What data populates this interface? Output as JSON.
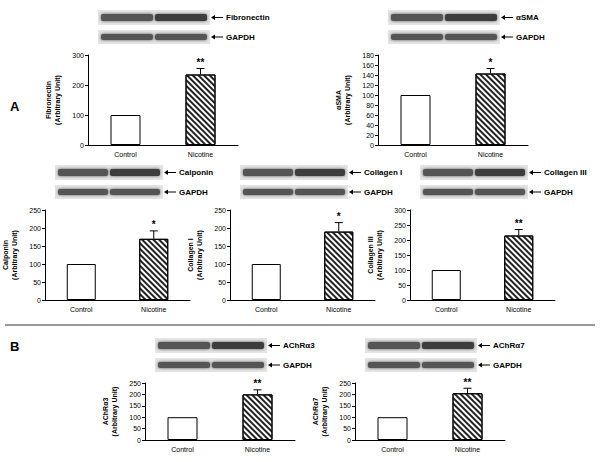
{
  "chart_data": [
    {
      "type": "bar",
      "panel": "A",
      "blot_labels": [
        "Fibronectin",
        "GAPDH"
      ],
      "ylabel": "Fibronectin\n(Arbitrary Unit)",
      "categories": [
        "Control",
        "Nicotine"
      ],
      "values": [
        100,
        235
      ],
      "errors": [
        null,
        20
      ],
      "significance": [
        null,
        "**"
      ],
      "ylim": [
        0,
        300
      ],
      "yticks": [
        0,
        100,
        200,
        300
      ],
      "grid": false
    },
    {
      "type": "bar",
      "panel": "A",
      "blot_labels": [
        "αSMA",
        "GAPDH"
      ],
      "ylabel": "αSMA\n(Arbitrary Unit)",
      "categories": [
        "Control",
        "Nicotine"
      ],
      "values": [
        100,
        143
      ],
      "errors": [
        null,
        10
      ],
      "significance": [
        null,
        "*"
      ],
      "ylim": [
        0,
        180
      ],
      "yticks": [
        0,
        20,
        40,
        60,
        80,
        100,
        120,
        140,
        160,
        180
      ],
      "grid": false
    },
    {
      "type": "bar",
      "panel": "A",
      "blot_labels": [
        "Calponin",
        "GAPDH"
      ],
      "ylabel": "Calponin\n(Arbitrary Unit)",
      "categories": [
        "Control",
        "Nicotine"
      ],
      "values": [
        100,
        170
      ],
      "errors": [
        null,
        22
      ],
      "significance": [
        null,
        "*"
      ],
      "ylim": [
        0,
        250
      ],
      "yticks": [
        0,
        50,
        100,
        150,
        200,
        250
      ],
      "grid": false
    },
    {
      "type": "bar",
      "panel": "A",
      "blot_labels": [
        "Collagen I",
        "GAPDH"
      ],
      "ylabel": "Collagen I\n(Arbitrary Unit)",
      "categories": [
        "Control",
        "Nicotine"
      ],
      "values": [
        100,
        190
      ],
      "errors": [
        null,
        25
      ],
      "significance": [
        null,
        "*"
      ],
      "ylim": [
        0,
        250
      ],
      "yticks": [
        0,
        50,
        100,
        150,
        200,
        250
      ],
      "grid": false
    },
    {
      "type": "bar",
      "panel": "A",
      "blot_labels": [
        "Collagen III",
        "GAPDH"
      ],
      "ylabel": "Collagen III\n(Arbitrary Unit)",
      "categories": [
        "Control",
        "Nicotine"
      ],
      "values": [
        100,
        215
      ],
      "errors": [
        null,
        20
      ],
      "significance": [
        null,
        "**"
      ],
      "ylim": [
        0,
        300
      ],
      "yticks": [
        0,
        50,
        100,
        150,
        200,
        250,
        300
      ],
      "grid": false
    },
    {
      "type": "bar",
      "panel": "B",
      "blot_labels": [
        "AChRα3",
        "GAPDH"
      ],
      "ylabel": "AChRα3\n(Arbitrary Unit)",
      "categories": [
        "Control",
        "Nicotine"
      ],
      "values": [
        100,
        200
      ],
      "errors": [
        null,
        20
      ],
      "significance": [
        null,
        "**"
      ],
      "ylim": [
        0,
        250
      ],
      "yticks": [
        0,
        50,
        100,
        150,
        200,
        250
      ],
      "grid": false
    },
    {
      "type": "bar",
      "panel": "B",
      "blot_labels": [
        "AChRα7",
        "GAPDH"
      ],
      "ylabel": "AChRα7\n(Arbitrary Unit)",
      "categories": [
        "Control",
        "Nicotine"
      ],
      "values": [
        100,
        205
      ],
      "errors": [
        null,
        22
      ],
      "significance": [
        null,
        "**"
      ],
      "ylim": [
        0,
        250
      ],
      "yticks": [
        0,
        50,
        100,
        150,
        200,
        250
      ],
      "grid": false
    }
  ]
}
